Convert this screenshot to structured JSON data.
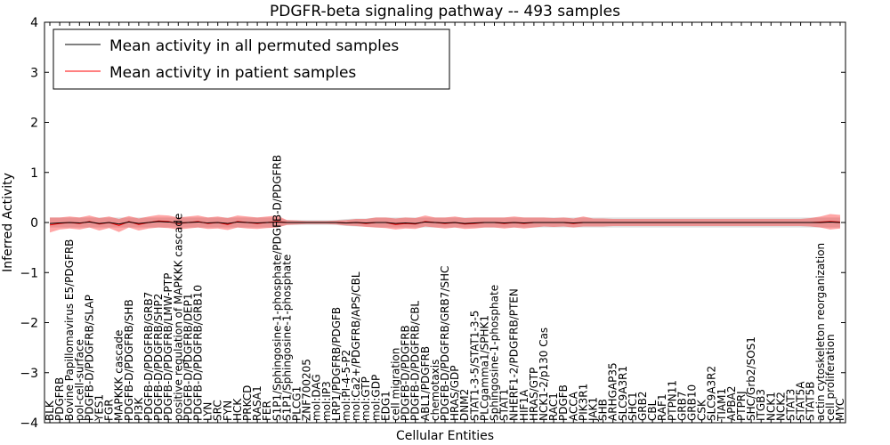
{
  "chart_data": {
    "type": "line",
    "title": "PDGFR-beta signaling pathway -- 493 samples",
    "xlabel": "Cellular Entities",
    "ylabel": "Inferred Activity",
    "ylim": [
      -4,
      4
    ],
    "yticks": [
      -4,
      -3,
      -2,
      -1,
      0,
      1,
      2,
      3,
      4
    ],
    "grid": false,
    "legend_position": "top-left",
    "categories": [
      "BLK",
      "PDGFRB",
      "Bovine Papillomavirus E5/PDGFRB",
      "pol-cell-surface",
      "PDGFB-D/PDGFRB/SLAP",
      "YES1",
      "FGR",
      "MAPKKK cascade",
      "PDGFB-D/PDGFRB/SHB",
      "PI3K",
      "PDGFB-D/PDGFRB/GRB7",
      "PDGFB-D/PDGFRB/SHP2",
      "PDGFB-D/PDGFRB/LMW-PTP",
      "positive regulation of MAPKKK cascade",
      "PDGFB-D/PDGFRB/DEP1",
      "PDGFB-D/PDGFRB/GRB10",
      "LYN",
      "SRC",
      "FYN",
      "HCK",
      "PRKCD",
      "RASA1",
      "FER",
      "S1P1/Sphingosine-1-phosphate/PDGFB-D/PDGFRB",
      "S1P1/Sphingosine-1-phosphate",
      "PLCG1",
      "ZNF700205",
      "mol:DAG",
      "mol:IP3",
      "LRP1/PDGFRB/PDGFB",
      "mol:PI-4-5-P2",
      "mol:Ca2+/PDGFRB/APS/CBL",
      "mol:GTP",
      "mol:GDP",
      "EDG1",
      "cell migration",
      "PDGFB-D/PDGFRB",
      "PDGFB-D/PDGFRB/CBL",
      "ABL1/PDGFRB",
      "chemotaxis",
      "PDGFB-D/PDGFRB/GRB7/SHC",
      "HRAS/GDP",
      "DNM2",
      "STAT1-3-5/STAT1-3-5",
      "PLCgamma1/SPHK1",
      "Sphingosine-1-phosphate",
      "STAT1",
      "NHERF1-2/PDGFRB/PTEN",
      "HIF1A",
      "HRAS/GTP",
      "NCK1-2/p130 Cas",
      "RAC1",
      "PDGFB",
      "ACCA",
      "PIK3R1",
      "JAK1",
      "SHB",
      "ARHGAP35",
      "SLC9A3R1",
      "SHC1",
      "GRB2",
      "CBL",
      "RAF1",
      "PTPN11",
      "GRB7",
      "GRB10",
      "CSK",
      "SLC9A3R2",
      "TIAM1",
      "APBA2",
      "PTPRJ",
      "SHC/Grb2/SOS1",
      "ITGB3",
      "NCK1",
      "NCK2",
      "STAT3",
      "STAT5A",
      "STAT5B",
      "actin cytoskeleton reorganization",
      "cell proliferation",
      "MYC"
    ],
    "series": [
      {
        "name": "Mean activity in all permuted samples",
        "color": "#000000",
        "values": [
          -0.02,
          -0.01,
          0.0,
          -0.01,
          0.01,
          -0.02,
          0.0,
          -0.03,
          0.01,
          -0.02,
          0.0,
          0.02,
          0.01,
          -0.01,
          0.0,
          0.01,
          -0.01,
          0.0,
          -0.02,
          0.01,
          0.0,
          -0.01,
          0.0,
          0.01,
          0.0,
          0.0,
          0.0,
          0.0,
          0.0,
          0.0,
          -0.01,
          0.0,
          -0.01,
          0.0,
          0.0,
          -0.02,
          -0.01,
          -0.02,
          0.01,
          0.0,
          -0.01,
          0.0,
          -0.02,
          -0.01,
          0.0,
          0.0,
          -0.01,
          0.0,
          -0.01,
          0.0,
          0.0,
          0.0,
          0.0,
          -0.01,
          0.0,
          0.0,
          0.0,
          0.0,
          0.0,
          0.0,
          0.0,
          0.0,
          0.0,
          0.0,
          0.0,
          0.0,
          0.0,
          0.0,
          0.0,
          0.0,
          0.0,
          0.0,
          0.0,
          0.0,
          0.0,
          0.0,
          0.0,
          0.0,
          0.0,
          0.01,
          0.0
        ],
        "band": {
          "color": "#bbbbbb",
          "lower": [
            -0.1,
            -0.1,
            -0.1,
            -0.1,
            -0.1,
            -0.1,
            -0.1,
            -0.1,
            -0.1,
            -0.1,
            -0.1,
            -0.1,
            -0.1,
            -0.1,
            -0.1,
            -0.1,
            -0.1,
            -0.1,
            -0.1,
            -0.1,
            -0.1,
            -0.1,
            -0.1,
            -0.1,
            -0.05,
            -0.05,
            -0.05,
            -0.05,
            -0.05,
            -0.05,
            -0.07,
            -0.08,
            -0.08,
            -0.1,
            -0.1,
            -0.1,
            -0.1,
            -0.1,
            -0.1,
            -0.1,
            -0.1,
            -0.1,
            -0.1,
            -0.1,
            -0.1,
            -0.1,
            -0.1,
            -0.1,
            -0.1,
            -0.1,
            -0.1,
            -0.1,
            -0.1,
            -0.1,
            -0.1,
            -0.1,
            -0.1,
            -0.1,
            -0.1,
            -0.1,
            -0.1,
            -0.1,
            -0.1,
            -0.1,
            -0.1,
            -0.1,
            -0.1,
            -0.1,
            -0.1,
            -0.1,
            -0.1,
            -0.1,
            -0.1,
            -0.1,
            -0.1,
            -0.1,
            -0.1,
            -0.1,
            -0.1,
            -0.1,
            -0.1
          ],
          "upper": [
            0.1,
            0.1,
            0.1,
            0.1,
            0.1,
            0.1,
            0.1,
            0.1,
            0.1,
            0.1,
            0.1,
            0.1,
            0.1,
            0.1,
            0.1,
            0.1,
            0.1,
            0.1,
            0.1,
            0.1,
            0.1,
            0.1,
            0.1,
            0.1,
            0.05,
            0.05,
            0.05,
            0.05,
            0.05,
            0.05,
            0.07,
            0.08,
            0.08,
            0.1,
            0.1,
            0.1,
            0.1,
            0.1,
            0.1,
            0.1,
            0.1,
            0.1,
            0.1,
            0.1,
            0.1,
            0.1,
            0.1,
            0.1,
            0.1,
            0.1,
            0.1,
            0.1,
            0.1,
            0.1,
            0.1,
            0.1,
            0.1,
            0.1,
            0.1,
            0.1,
            0.1,
            0.1,
            0.1,
            0.1,
            0.1,
            0.1,
            0.1,
            0.1,
            0.1,
            0.1,
            0.1,
            0.1,
            0.1,
            0.1,
            0.1,
            0.1,
            0.1,
            0.1,
            0.1,
            0.1,
            0.1
          ]
        }
      },
      {
        "name": "Mean activity in patient samples",
        "color": "#ff0000",
        "values": [
          -0.05,
          -0.02,
          0.0,
          -0.02,
          0.02,
          -0.03,
          0.0,
          -0.06,
          0.02,
          -0.04,
          0.0,
          0.03,
          0.02,
          -0.02,
          0.0,
          0.02,
          -0.02,
          0.0,
          -0.04,
          0.02,
          0.0,
          -0.02,
          0.0,
          0.02,
          0.0,
          0.0,
          0.0,
          0.0,
          0.0,
          0.0,
          -0.01,
          0.0,
          -0.02,
          0.0,
          0.0,
          -0.04,
          -0.02,
          -0.03,
          0.02,
          0.0,
          -0.02,
          0.0,
          -0.03,
          -0.02,
          0.0,
          0.0,
          -0.02,
          0.0,
          -0.02,
          0.0,
          0.0,
          0.0,
          0.0,
          -0.02,
          0.0,
          0.0,
          0.0,
          0.0,
          0.0,
          0.0,
          0.0,
          0.0,
          0.0,
          0.0,
          0.0,
          0.0,
          0.0,
          0.0,
          0.0,
          0.0,
          0.0,
          0.0,
          0.0,
          0.0,
          0.0,
          0.0,
          0.0,
          0.0,
          0.01,
          0.02,
          0.01
        ],
        "band": {
          "color": "#ff0000",
          "lower": [
            -0.2,
            -0.14,
            -0.12,
            -0.14,
            -0.1,
            -0.16,
            -0.11,
            -0.19,
            -0.1,
            -0.16,
            -0.12,
            -0.1,
            -0.11,
            -0.14,
            -0.12,
            -0.1,
            -0.13,
            -0.12,
            -0.15,
            -0.1,
            -0.12,
            -0.13,
            -0.11,
            -0.1,
            -0.05,
            -0.04,
            -0.03,
            -0.03,
            -0.03,
            -0.04,
            -0.06,
            -0.07,
            -0.09,
            -0.1,
            -0.11,
            -0.14,
            -0.12,
            -0.13,
            -0.08,
            -0.1,
            -0.12,
            -0.1,
            -0.13,
            -0.12,
            -0.1,
            -0.1,
            -0.12,
            -0.1,
            -0.12,
            -0.1,
            -0.08,
            -0.09,
            -0.08,
            -0.1,
            -0.08,
            -0.08,
            -0.08,
            -0.07,
            -0.07,
            -0.07,
            -0.07,
            -0.07,
            -0.07,
            -0.07,
            -0.07,
            -0.07,
            -0.07,
            -0.07,
            -0.07,
            -0.07,
            -0.07,
            -0.07,
            -0.07,
            -0.07,
            -0.07,
            -0.07,
            -0.07,
            -0.08,
            -0.1,
            -0.14,
            -0.12
          ],
          "upper": [
            0.1,
            0.1,
            0.12,
            0.1,
            0.14,
            0.09,
            0.12,
            0.07,
            0.13,
            0.08,
            0.12,
            0.15,
            0.14,
            0.1,
            0.12,
            0.14,
            0.1,
            0.12,
            0.09,
            0.14,
            0.12,
            0.1,
            0.12,
            0.14,
            0.05,
            0.04,
            0.03,
            0.03,
            0.03,
            0.04,
            0.05,
            0.07,
            0.07,
            0.1,
            0.1,
            0.08,
            0.1,
            0.09,
            0.14,
            0.1,
            0.1,
            0.12,
            0.09,
            0.1,
            0.1,
            0.1,
            0.1,
            0.12,
            0.1,
            0.1,
            0.1,
            0.09,
            0.1,
            0.08,
            0.12,
            0.08,
            0.08,
            0.07,
            0.07,
            0.07,
            0.07,
            0.07,
            0.07,
            0.07,
            0.07,
            0.07,
            0.07,
            0.07,
            0.07,
            0.07,
            0.07,
            0.07,
            0.07,
            0.07,
            0.07,
            0.07,
            0.07,
            0.09,
            0.12,
            0.17,
            0.15
          ]
        }
      }
    ]
  }
}
